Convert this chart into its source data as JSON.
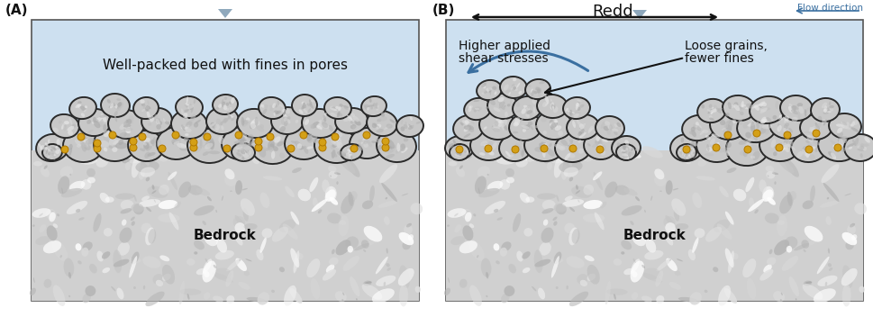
{
  "fig_width": 9.7,
  "fig_height": 3.52,
  "bg_color": "#ffffff",
  "water_color": "#cde0f0",
  "rock_face_color": "#c8c8c8",
  "rock_face_color2": "#b8b8b8",
  "rock_edge_color": "#2a2a2a",
  "fine_color": "#d4a017",
  "fine_edge": "#b07800",
  "label_A": "(A)",
  "label_B": "(B)",
  "text_A": "Well-packed bed with fines in pores",
  "text_bedrock": "Bedrock",
  "text_redd": "Redd",
  "text_flow": "Flow direction",
  "text_higher1": "Higher applied",
  "text_higher2": "shear stresses",
  "text_loose1": "Loose grains,",
  "text_loose2": "fewer fines",
  "arrow_blue": "#3a6fa0",
  "arrow_black": "#111111",
  "triangle_color": "#8fa8bc",
  "panel_edge": "#555555",
  "bedrock_base": "#d8d8d8",
  "bedrock_mid": "#c0c0c0",
  "bedrock_dark": "#a0a0a0",
  "bedrock_light": "#f0f0f0"
}
